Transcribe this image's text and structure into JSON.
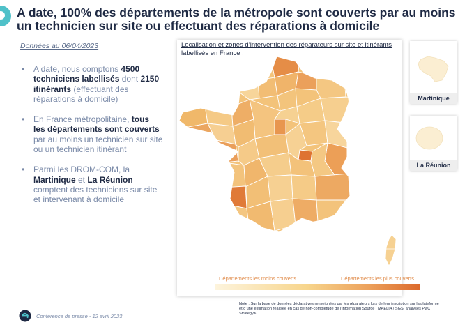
{
  "header": {
    "title": "A date, 100% des départements de la métropole sont couverts par au moins un technicien sur site ou effectuant des réparations à domicile"
  },
  "date_note": "Données au 06/04/2023",
  "bullets": [
    {
      "p1": "A date, nous comptons ",
      "b1": "4500 techniciens labellisés",
      "p2": " dont ",
      "b2": "2150 itinérants",
      "p3": " (effectuant des réparations à domicile)"
    },
    {
      "p1": "En France métropolitaine, ",
      "b1": "tous les départements sont couverts",
      "p2": " par au moins un technicien sur site ou un technicien itinérant"
    },
    {
      "p1": "Parmi les DROM-COM, la ",
      "b1": "Martinique",
      "p2": " et ",
      "b2": "La Réunion",
      "p3": " comptent des techniciens sur site et intervenant à domicile"
    }
  ],
  "map": {
    "title": "Localisation et zones d’intervention des réparateurs sur site et itinérants labellisés en France :",
    "legend_min": "Départements les moins couverts",
    "legend_max": "Départements les plus couverts",
    "scale_colors": [
      "#fdf4dd",
      "#f7d58c",
      "#eca15c",
      "#dc6a2c"
    ]
  },
  "drom": {
    "martinique": "Martinique",
    "reunion": "La Réunion"
  },
  "footer": {
    "text": "Conférence de presse - 12 avril 2023",
    "note": "Note : Sur la base de données déclaratives renseignées par les réparateurs lors de leur inscription sur la plateforme et d’une estimation réalisée en cas de non-complétude de l’information Source : MAELIA / SGS; analyses PwC Strategy&"
  },
  "colors": {
    "navy": "#1f2a44",
    "teal": "#4fc1c9",
    "muted": "#7a8aa8",
    "orange": "#e08a48"
  }
}
